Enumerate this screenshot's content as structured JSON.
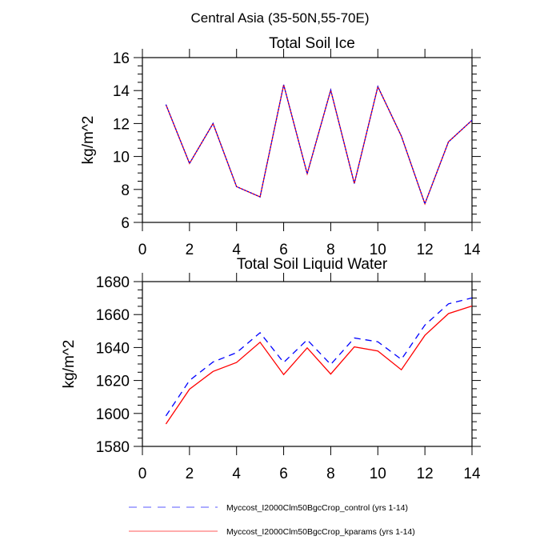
{
  "chart_data": [
    {
      "type": "line",
      "suptitle": "Central Asia (35-50N,55-70E)",
      "title": "Total Soil Ice",
      "xlabel": "",
      "ylabel": "kg/m^2",
      "xlim": [
        0,
        14
      ],
      "ylim": [
        6,
        16
      ],
      "xticks": [
        "0",
        "2",
        "4",
        "6",
        "8",
        "10",
        "12",
        "14"
      ],
      "yticks": [
        "6",
        "8",
        "10",
        "12",
        "14",
        "16"
      ],
      "x": [
        1,
        2,
        3,
        4,
        5,
        6,
        7,
        8,
        9,
        10,
        11,
        12,
        13,
        14
      ],
      "series": [
        {
          "name": "Myccost_I2000Clm50BgcCrop_control (yrs 1-14)",
          "color": "#0000ff",
          "dash": "dashed",
          "values": [
            13.15,
            9.58,
            12.0,
            8.17,
            7.55,
            14.35,
            8.95,
            14.03,
            8.36,
            14.24,
            11.24,
            7.13,
            10.89,
            12.2
          ]
        },
        {
          "name": "Myccost_I2000Clm50BgcCrop_kparams (yrs 1-14)",
          "color": "#ff0000",
          "dash": "solid",
          "values": [
            13.15,
            9.58,
            12.0,
            8.17,
            7.55,
            14.35,
            8.95,
            14.03,
            8.36,
            14.24,
            11.24,
            7.13,
            10.89,
            12.2
          ]
        }
      ],
      "grid": false
    },
    {
      "type": "line",
      "title": "Total Soil Liquid Water",
      "xlabel": "",
      "ylabel": "kg/m^2",
      "xlim": [
        0,
        14
      ],
      "ylim": [
        1580,
        1680
      ],
      "xticks": [
        "0",
        "2",
        "4",
        "6",
        "8",
        "10",
        "12",
        "14"
      ],
      "yticks": [
        "1580",
        "1600",
        "1620",
        "1640",
        "1660",
        "1680"
      ],
      "x": [
        1,
        2,
        3,
        4,
        5,
        6,
        7,
        8,
        9,
        10,
        11,
        12,
        13,
        14
      ],
      "series": [
        {
          "name": "Myccost_I2000Clm50BgcCrop_control (yrs 1-14)",
          "color": "#0000ff",
          "dash": "dashed",
          "values": [
            1598.5,
            1620.0,
            1631.2,
            1636.9,
            1649.0,
            1630.9,
            1644.7,
            1629.7,
            1645.8,
            1643.5,
            1632.8,
            1653.6,
            1666.5,
            1670.1
          ]
        },
        {
          "name": "Myccost_I2000Clm50BgcCrop_kparams (yrs 1-14)",
          "color": "#ff0000",
          "dash": "solid",
          "values": [
            1593.6,
            1614.7,
            1625.5,
            1630.9,
            1643.2,
            1623.6,
            1639.8,
            1623.9,
            1640.4,
            1637.9,
            1626.5,
            1647.4,
            1660.6,
            1665.2
          ]
        }
      ],
      "grid": false
    }
  ],
  "legend": {
    "placement": "bottom",
    "entries": [
      {
        "label": "Myccost_I2000Clm50BgcCrop_control (yrs 1-14)",
        "color": "#0000ff",
        "dash": "dashed"
      },
      {
        "label": "Myccost_I2000Clm50BgcCrop_kparams (yrs 1-14)",
        "color": "#ff0000",
        "dash": "solid"
      }
    ]
  }
}
